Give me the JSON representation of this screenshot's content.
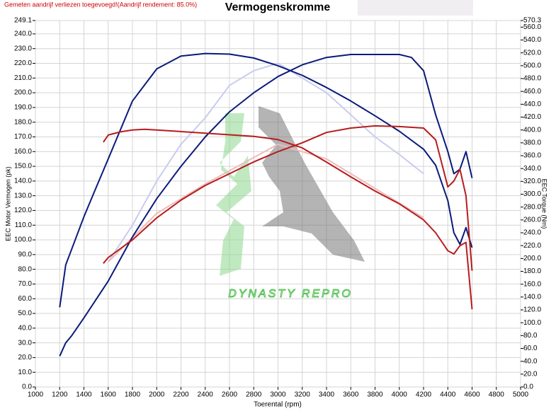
{
  "chart_data": {
    "type": "line",
    "title": "Vermogenskromme",
    "note": "Gemeten aandrijf verliezen toegevoegd!(Aandrijf rendement: 85.0%)",
    "watermark": "DYNASTY REPRO",
    "x_label": "Toerental (rpm)",
    "y_label": "EEC Motor Vermogen (pk)",
    "y2_label": "EEC Torque (Nm)",
    "grid": true,
    "xlim": [
      1000,
      5000
    ],
    "xticks": [
      1000,
      1200,
      1400,
      1600,
      1800,
      2000,
      2200,
      2400,
      2600,
      2800,
      3000,
      3200,
      3400,
      3600,
      3800,
      4000,
      4200,
      4400,
      4600,
      4800,
      5000
    ],
    "ylim": [
      0,
      249.1
    ],
    "yticks": [
      {
        "value": 0,
        "label": "0.0"
      },
      {
        "value": 10,
        "label": "10.0"
      },
      {
        "value": 20,
        "label": "20.0"
      },
      {
        "value": 30,
        "label": "30.0"
      },
      {
        "value": 40,
        "label": "40.0"
      },
      {
        "value": 50,
        "label": "50.0"
      },
      {
        "value": 60,
        "label": "60.0"
      },
      {
        "value": 70,
        "label": "70.0"
      },
      {
        "value": 80,
        "label": "80.0"
      },
      {
        "value": 90,
        "label": "90.0"
      },
      {
        "value": 100,
        "label": "100.0"
      },
      {
        "value": 110,
        "label": "110.0"
      },
      {
        "value": 120,
        "label": "120.0"
      },
      {
        "value": 130,
        "label": "130.0"
      },
      {
        "value": 140,
        "label": "140.0"
      },
      {
        "value": 150,
        "label": "150.0"
      },
      {
        "value": 160,
        "label": "160.0"
      },
      {
        "value": 170,
        "label": "170.0"
      },
      {
        "value": 180,
        "label": "180.0"
      },
      {
        "value": 190,
        "label": "190.0"
      },
      {
        "value": 200,
        "label": "200.0"
      },
      {
        "value": 210,
        "label": "210.0"
      },
      {
        "value": 220,
        "label": "220.0"
      },
      {
        "value": 230,
        "label": "230.0"
      },
      {
        "value": 240,
        "label": "240.0"
      },
      249.1
    ],
    "y2lim": [
      0,
      570.3
    ],
    "y2ticks": [
      {
        "value": 0,
        "label": "0.0"
      },
      {
        "value": 20,
        "label": "20.0"
      },
      {
        "value": 40,
        "label": "40.0"
      },
      {
        "value": 60,
        "label": "60.0"
      },
      {
        "value": 80,
        "label": "80.0"
      },
      {
        "value": 100,
        "label": "100.0"
      },
      {
        "value": 120,
        "label": "120.0"
      },
      {
        "value": 140,
        "label": "140.0"
      },
      {
        "value": 160,
        "label": "160.0"
      },
      {
        "value": 180,
        "label": "180.0"
      },
      {
        "value": 200,
        "label": "200.0"
      },
      {
        "value": 220,
        "label": "220.0"
      },
      {
        "value": 240,
        "label": "240.0"
      },
      {
        "value": 260,
        "label": "260.0"
      },
      {
        "value": 280,
        "label": "280.0"
      },
      {
        "value": 300,
        "label": "300.0"
      },
      {
        "value": 320,
        "label": "320.0"
      },
      {
        "value": 340,
        "label": "340.0"
      },
      {
        "value": 360,
        "label": "360.0"
      },
      {
        "value": 380,
        "label": "380.0"
      },
      {
        "value": 400,
        "label": "400.0"
      },
      {
        "value": 420,
        "label": "420.0"
      },
      {
        "value": 440,
        "label": "440.0"
      },
      {
        "value": 460,
        "label": "460.0"
      },
      {
        "value": 480,
        "label": "480.0"
      },
      {
        "value": 500,
        "label": "500.0"
      },
      {
        "value": 520,
        "label": "520.0"
      },
      {
        "value": 540,
        "label": "540.0"
      },
      {
        "value": 560,
        "label": "560.0"
      },
      570.3
    ],
    "series": [
      {
        "color": "#c8ccee",
        "axis": "y",
        "x": [
          1600,
          1800,
          2000,
          2200,
          2400,
          2600,
          2800,
          3000,
          3200,
          3400,
          3600,
          3800,
          4000,
          4200
        ],
        "values": [
          85,
          110,
          140,
          165,
          183,
          205,
          215,
          220,
          210,
          200,
          185,
          170,
          158,
          145
        ]
      },
      {
        "color": "#eebbbb",
        "axis": "y",
        "x": [
          1600,
          2000,
          2400,
          2800,
          3000,
          3200,
          3400,
          3600,
          3800,
          4000,
          4200
        ],
        "values": [
          85,
          118,
          138,
          156,
          165,
          160,
          155,
          145,
          135,
          125,
          115
        ]
      },
      {
        "color": "#0a1a7a",
        "axis": "y2",
        "x": [
          1200,
          1250,
          1300,
          1400,
          1500,
          1600,
          1800,
          2000,
          2200,
          2400,
          2600,
          2800,
          3000,
          3200,
          3400,
          3600,
          3800,
          4000,
          4200,
          4300,
          4400,
          4450,
          4500,
          4550,
          4600
        ],
        "values": [
          124,
          190,
          215,
          265,
          310,
          355,
          445,
          495,
          515,
          519,
          518,
          512,
          500,
          485,
          466,
          445,
          422,
          398,
          370,
          345,
          290,
          240,
          222,
          248,
          217
        ]
      },
      {
        "color": "#0a1a7a",
        "axis": "y",
        "x": [
          1200,
          1250,
          1300,
          1400,
          1600,
          1800,
          2000,
          2200,
          2400,
          2600,
          2800,
          3000,
          3200,
          3400,
          3600,
          3800,
          4000,
          4100,
          4200,
          4300,
          4400,
          4450,
          4500,
          4550,
          4600
        ],
        "values": [
          21,
          30,
          35,
          47,
          72,
          102,
          128,
          150,
          170,
          187,
          200,
          211,
          219,
          224,
          226,
          226,
          226,
          224,
          215,
          185,
          160,
          145,
          148,
          160,
          142
        ]
      },
      {
        "color": "#b81c1c",
        "axis": "y2",
        "x": [
          1560,
          1600,
          1700,
          1800,
          1900,
          2000,
          2400,
          2800,
          3000,
          3200,
          3400,
          3600,
          3800,
          4000,
          4200,
          4300,
          4400,
          4450,
          4500,
          4550,
          4600
        ],
        "values": [
          381,
          392,
          397,
          400,
          401,
          400,
          395,
          390,
          385,
          372,
          350,
          327,
          305,
          285,
          260,
          240,
          212,
          207,
          220,
          225,
          121
        ]
      },
      {
        "color": "#b81c1c",
        "axis": "y",
        "x": [
          1560,
          1600,
          1800,
          2000,
          2200,
          2400,
          2600,
          2800,
          3000,
          3200,
          3400,
          3600,
          3800,
          4000,
          4200,
          4300,
          4400,
          4450,
          4500,
          4550,
          4600
        ],
        "values": [
          84,
          88,
          100,
          115,
          127,
          137,
          145,
          153,
          160,
          166,
          173,
          176,
          177.5,
          177,
          176,
          168,
          136,
          140,
          148,
          130,
          79
        ]
      }
    ]
  }
}
